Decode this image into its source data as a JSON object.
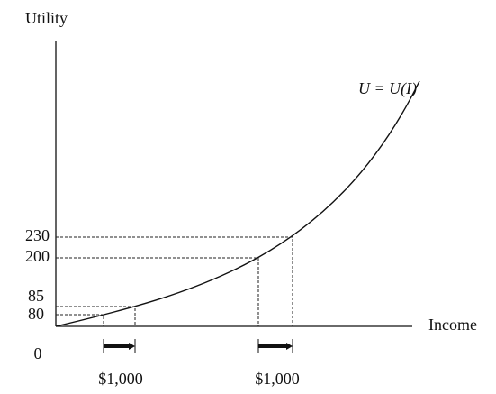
{
  "axes": {
    "y_label": "Utility",
    "x_label": "Income",
    "origin": "0"
  },
  "curve_label": "U = U(I)",
  "y_levels": [
    "230",
    "200",
    "85",
    "80"
  ],
  "intervals": [
    "$1,000",
    "$1,000"
  ]
}
